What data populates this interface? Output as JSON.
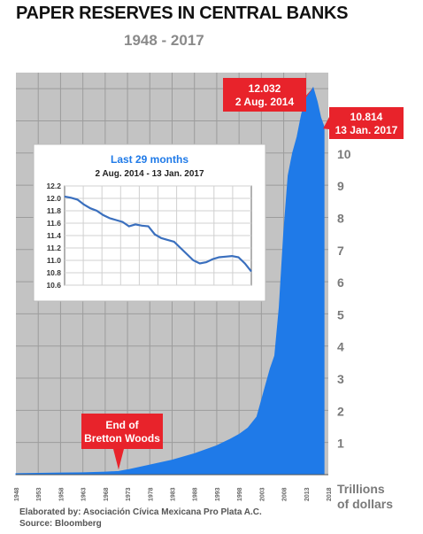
{
  "header": {
    "title": "PAPER RESERVES IN CENTRAL BANKS",
    "subtitle": "1948 - 2017"
  },
  "colors": {
    "area_fill": "#1f7ae8",
    "plot_background": "#c3c3c3",
    "callout": "#e8232b",
    "inset_line": "#3a6fbe",
    "inset_title": "#1f7ae8"
  },
  "chart_data": [
    {
      "type": "area",
      "title": "PAPER RESERVES IN CENTRAL BANKS",
      "subtitle": "1948 - 2017",
      "ylabel": "Trillions of dollars",
      "ylabel_lines": [
        "Trillions",
        "of dollars"
      ],
      "xlim": [
        1948,
        2018
      ],
      "ylim": [
        0,
        12.5
      ],
      "y_ticks": [
        1,
        2,
        3,
        4,
        5,
        6,
        7,
        8,
        9,
        10
      ],
      "x_ticks": [
        1948,
        1953,
        1958,
        1963,
        1968,
        1973,
        1978,
        1983,
        1988,
        1993,
        1998,
        2003,
        2008,
        2013,
        2018
      ],
      "grid": true,
      "x": [
        1948,
        1953,
        1958,
        1963,
        1968,
        1971,
        1973,
        1978,
        1983,
        1988,
        1993,
        1996,
        1998,
        2000,
        2002,
        2003,
        2004,
        2005,
        2006,
        2007,
        2008,
        2009,
        2010,
        2011,
        2012,
        2013,
        2014.6,
        2015.5,
        2016.3,
        2017.04
      ],
      "y": [
        0.03,
        0.04,
        0.05,
        0.06,
        0.08,
        0.1,
        0.15,
        0.3,
        0.45,
        0.65,
        0.9,
        1.1,
        1.25,
        1.45,
        1.8,
        2.3,
        2.8,
        3.3,
        3.7,
        5.2,
        7.5,
        9.3,
        10.0,
        10.5,
        11.2,
        11.7,
        12.032,
        11.6,
        11.1,
        10.814
      ],
      "annotations": [
        {
          "label": "End of",
          "label2": "Bretton Woods",
          "x": 1971,
          "y": 0.1
        },
        {
          "label": "12.032",
          "label2": "2 Aug. 2014",
          "x": 2014.6,
          "y": 12.032
        },
        {
          "label": "10.814",
          "label2": "13 Jan. 2017",
          "x": 2017.04,
          "y": 10.814
        }
      ]
    },
    {
      "type": "line",
      "title": "Last 29 months",
      "subtitle": "2 Aug. 2014 - 13 Jan. 2017",
      "ylim": [
        10.6,
        12.2
      ],
      "y_ticks": [
        10.6,
        10.8,
        11.0,
        11.2,
        11.4,
        11.6,
        11.8,
        12.0,
        12.2
      ],
      "grid": true,
      "x": [
        0,
        1,
        2,
        3,
        4,
        5,
        6,
        7,
        8,
        9,
        10,
        11,
        12,
        13,
        14,
        15,
        16,
        17,
        18,
        19,
        20,
        21,
        22,
        23,
        24,
        25,
        26,
        27,
        28,
        29
      ],
      "y": [
        12.03,
        12.01,
        11.98,
        11.9,
        11.84,
        11.8,
        11.73,
        11.68,
        11.65,
        11.62,
        11.55,
        11.58,
        11.56,
        11.55,
        11.42,
        11.36,
        11.33,
        11.3,
        11.2,
        11.1,
        11.0,
        10.95,
        10.97,
        11.02,
        11.05,
        11.06,
        11.07,
        11.05,
        10.95,
        10.82
      ]
    }
  ],
  "footer": {
    "elaborated": "Elaborated by:  Asociación Cívica Mexicana Pro Plata A.C.",
    "source": "Source: Bloomberg"
  }
}
